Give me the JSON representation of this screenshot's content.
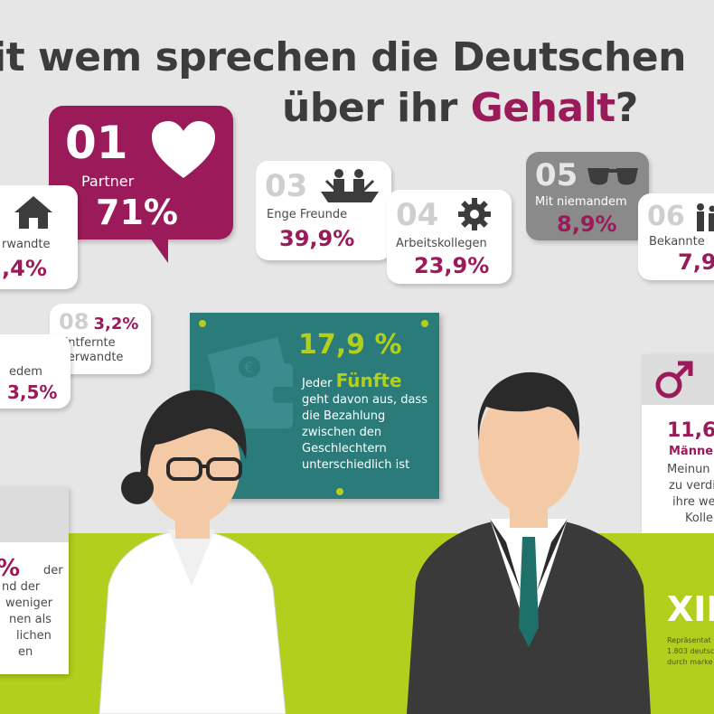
{
  "title": {
    "line1": "it wem sprechen die Deutschen",
    "line2_prefix": "über ihr ",
    "line2_highlight": "Gehalt",
    "line2_suffix": "?"
  },
  "items": [
    {
      "rank": "01",
      "label": "Partner",
      "value": "71%",
      "icon": "heart-icon"
    },
    {
      "rank": "",
      "label": "rwandte",
      "value": ",4%",
      "icon": "house-icon"
    },
    {
      "rank": "03",
      "label": "Enge Freunde",
      "value": "39,9%",
      "icon": "boat-friends-icon"
    },
    {
      "rank": "04",
      "label": "Arbeitskollegen",
      "value": "23,9%",
      "icon": "gear-icon"
    },
    {
      "rank": "05",
      "label": "Mit niemandem",
      "value": "8,9%",
      "icon": "sunglasses-icon"
    },
    {
      "rank": "06",
      "label": "Bekannte",
      "value": "7,9",
      "icon": "people-icon"
    },
    {
      "rank": "08",
      "label": "Entfernte Verwandte",
      "value": "3,2%",
      "icon": ""
    },
    {
      "rank": "",
      "label": "edem",
      "value": "3,5%",
      "icon": ""
    }
  ],
  "poster": {
    "value": "17,9 %",
    "text_pre": "Jeder ",
    "text_highlight": "Fünfte",
    "text_rest": "geht davon aus, dass die Bezahlung zwischen den Geschlechtern unterschiedlich ist",
    "icon": "wallet-money-icon"
  },
  "male_card": {
    "icon": "male-symbol-icon",
    "value": "11,6",
    "line1": "Männer",
    "line2": "Meinun",
    "line3": "zu verdi",
    "line4": "ihre we",
    "line5": "Kolle"
  },
  "female_card": {
    "pct": "%",
    "line1": "der",
    "line2": "nd der",
    "line3": "weniger",
    "line4": "nen als",
    "line5": "lichen",
    "line6": "en"
  },
  "brand": {
    "logo": "XIN",
    "note1": "Repräsentat",
    "note2": "1.803 deutsc",
    "note3": "durch marke"
  },
  "colors": {
    "primary": "#9b1b5a",
    "teal": "#2b7b7a",
    "lime": "#b2cf1d",
    "dark": "#3c3c3c",
    "gray_bubble": "#8a8a8a"
  }
}
